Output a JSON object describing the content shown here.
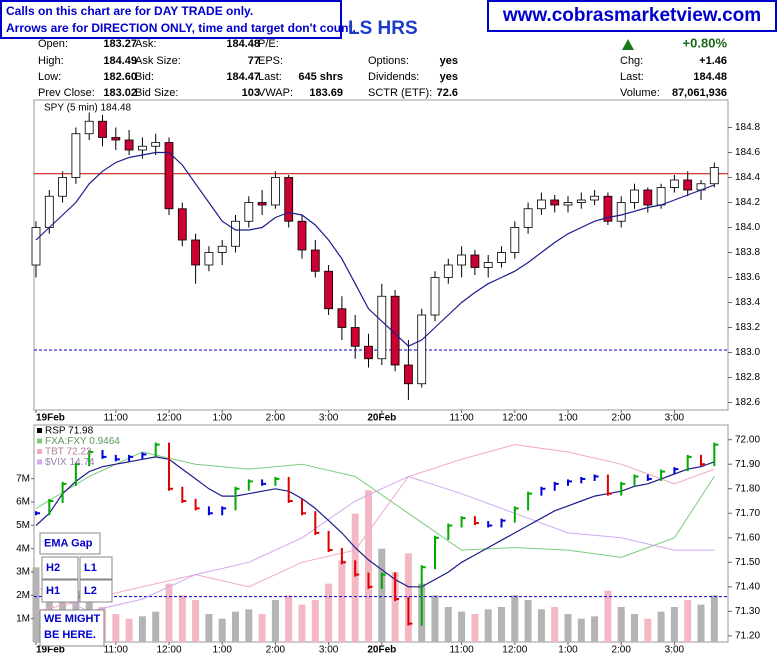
{
  "header": {
    "notice": [
      "Calls on this chart are for DAY TRADE only.",
      "Arrows are for DIRECTION ONLY, time and target don't count."
    ],
    "title": "LS HRS",
    "website": "www.cobrasmarketview.com",
    "quote": [
      [
        [
          "Open:",
          "183.27"
        ],
        [
          "Ask:",
          "184.48"
        ],
        [
          "P/E:"
        ],
        null,
        [
          "+0.80%"
        ]
      ],
      [
        [
          "High:",
          "184.49"
        ],
        [
          "Ask Size:",
          "77"
        ],
        [
          "EPS:"
        ],
        [
          "Options:",
          "yes"
        ],
        [
          "Chg:",
          "+1.46"
        ]
      ],
      [
        [
          "Low:",
          "182.60"
        ],
        [
          "Bid:",
          "184.47"
        ],
        [
          "Last:",
          "645 shrs"
        ],
        [
          "Dividends:",
          "yes"
        ],
        [
          "Last:",
          "184.48"
        ]
      ],
      [
        [
          "Prev Close:",
          "183.02"
        ],
        [
          "Bid Size:",
          "103"
        ],
        [
          "VWAP:",
          "183.69"
        ],
        [
          "SCTR (ETF):",
          "72.6"
        ],
        [
          "Volume:",
          "87,061,936"
        ]
      ]
    ]
  },
  "chart_data": [
    {
      "type": "candlestick",
      "label": "SPY (5 min) 184.48",
      "categories": [
        "19Feb",
        null,
        null,
        null,
        null,
        null,
        "11:00",
        null,
        null,
        null,
        "12:00",
        null,
        null,
        null,
        "1:00",
        null,
        null,
        null,
        "2:00",
        null,
        null,
        null,
        "3:00",
        null,
        null,
        null,
        "20Feb",
        null,
        null,
        null,
        null,
        null,
        "11:00",
        null,
        null,
        null,
        "12:00",
        null,
        null,
        null,
        "1:00",
        null,
        null,
        null,
        "2:00",
        null,
        null,
        null,
        "3:00",
        null,
        null,
        null
      ],
      "open": [
        183.7,
        184.0,
        184.25,
        184.4,
        184.75,
        184.85,
        184.72,
        184.7,
        184.62,
        184.65,
        184.68,
        184.15,
        183.9,
        183.7,
        183.8,
        183.85,
        184.05,
        184.2,
        184.18,
        184.4,
        184.05,
        183.82,
        183.65,
        183.35,
        183.2,
        183.05,
        182.95,
        183.45,
        182.9,
        182.75,
        183.3,
        183.6,
        183.7,
        183.78,
        183.68,
        183.72,
        183.8,
        184.0,
        184.15,
        184.22,
        184.18,
        184.2,
        184.22,
        184.25,
        184.05,
        184.2,
        184.3,
        184.18,
        184.32,
        184.38,
        184.3,
        184.35
      ],
      "high": [
        184.05,
        184.3,
        184.45,
        184.8,
        184.92,
        184.9,
        184.8,
        184.78,
        184.72,
        184.75,
        184.72,
        184.2,
        183.95,
        183.85,
        183.9,
        184.1,
        184.25,
        184.3,
        184.45,
        184.42,
        184.1,
        183.9,
        183.7,
        183.45,
        183.3,
        183.15,
        183.55,
        183.5,
        183.1,
        183.35,
        183.65,
        183.75,
        183.85,
        183.82,
        183.78,
        183.85,
        184.05,
        184.2,
        184.28,
        184.26,
        184.25,
        184.28,
        184.3,
        184.28,
        184.25,
        184.35,
        184.32,
        184.35,
        184.42,
        184.45,
        184.38,
        184.52
      ],
      "low": [
        183.6,
        183.95,
        184.2,
        184.35,
        184.7,
        184.65,
        184.62,
        184.58,
        184.55,
        184.58,
        184.1,
        183.85,
        183.55,
        183.65,
        183.7,
        183.8,
        184.0,
        184.1,
        184.15,
        184.0,
        183.75,
        183.6,
        183.3,
        183.1,
        182.95,
        182.88,
        182.9,
        182.85,
        182.62,
        182.72,
        183.25,
        183.55,
        183.6,
        183.62,
        183.6,
        183.68,
        183.75,
        183.95,
        184.1,
        184.12,
        184.12,
        184.15,
        184.18,
        184.02,
        184.0,
        184.15,
        184.12,
        184.15,
        184.28,
        184.25,
        184.22,
        184.32
      ],
      "close": [
        184.0,
        184.25,
        184.4,
        184.75,
        184.85,
        184.72,
        184.7,
        184.62,
        184.65,
        184.68,
        184.15,
        183.9,
        183.7,
        183.8,
        183.85,
        184.05,
        184.2,
        184.18,
        184.4,
        184.05,
        183.82,
        183.65,
        183.35,
        183.2,
        183.05,
        182.95,
        183.45,
        182.9,
        182.75,
        183.3,
        183.6,
        183.7,
        183.78,
        183.68,
        183.72,
        183.8,
        184.0,
        184.15,
        184.22,
        184.18,
        184.2,
        184.22,
        184.25,
        184.05,
        184.2,
        184.3,
        184.18,
        184.32,
        184.38,
        184.3,
        184.35,
        184.48
      ],
      "up_color": "#ffffff",
      "down_color": "#cc0033",
      "series": [
        {
          "color": "#1c1c8c",
          "values": [
            183.9,
            184.0,
            184.1,
            184.2,
            184.35,
            184.45,
            184.52,
            184.56,
            184.58,
            184.6,
            184.6,
            184.5,
            184.35,
            184.2,
            184.05,
            183.98,
            183.98,
            184.0,
            184.08,
            184.12,
            184.1,
            184.02,
            183.9,
            183.75,
            183.55,
            183.35,
            183.25,
            183.15,
            183.05,
            183.1,
            183.2,
            183.3,
            183.4,
            183.48,
            183.55,
            183.6,
            183.65,
            183.72,
            183.8,
            183.88,
            183.95,
            184.0,
            184.05,
            184.08,
            184.1,
            184.13,
            184.16,
            184.18,
            184.22,
            184.26,
            184.3,
            184.34
          ]
        }
      ],
      "hlines": [
        {
          "value": 184.43,
          "color": "#cc0000"
        },
        {
          "value": 183.02,
          "color": "#0000cc",
          "dashed": true
        }
      ],
      "ylim": [
        182.54,
        185.02
      ],
      "yticks": [
        182.6,
        182.8,
        {
          "value": 183,
          "label": "183.0"
        },
        183.2,
        183.4,
        183.6,
        183.8,
        {
          "value": 184,
          "label": "184.0"
        },
        184.2,
        184.4,
        184.6,
        184.8
      ]
    },
    {
      "type": "indicator",
      "categories": [
        "19Feb",
        null,
        null,
        null,
        null,
        null,
        "11:00",
        null,
        null,
        null,
        "12:00",
        null,
        null,
        null,
        "1:00",
        null,
        null,
        null,
        "2:00",
        null,
        null,
        null,
        "3:00",
        null,
        null,
        null,
        "20Feb",
        null,
        null,
        null,
        null,
        null,
        "11:00",
        null,
        null,
        null,
        "12:00",
        null,
        null,
        null,
        "1:00",
        null,
        null,
        null,
        "2:00",
        null,
        null,
        null,
        "3:00",
        null,
        null,
        null
      ],
      "series": [
        {
          "name": "RSP 71.98",
          "color": "#000000",
          "up_color": "#00aa00",
          "down_color": "#dd0000",
          "flat_color": "#0000dd",
          "values": [
            71.7,
            71.75,
            71.82,
            71.9,
            71.95,
            71.93,
            71.92,
            71.93,
            71.94,
            71.98,
            71.8,
            71.75,
            71.72,
            71.7,
            71.72,
            71.8,
            71.83,
            71.82,
            71.84,
            71.75,
            71.7,
            71.62,
            71.55,
            71.5,
            71.45,
            71.4,
            71.45,
            71.35,
            71.25,
            71.48,
            71.6,
            71.65,
            71.68,
            71.66,
            71.65,
            71.67,
            71.72,
            71.78,
            71.8,
            71.82,
            71.83,
            71.84,
            71.85,
            71.78,
            71.82,
            71.85,
            71.84,
            71.87,
            71.88,
            71.93,
            71.9,
            71.98
          ]
        },
        {
          "name": "FXA:FXY 0.9464",
          "color": "#7ccc7c",
          "x": [
            0,
            4,
            8,
            12,
            16,
            20,
            24,
            28,
            32,
            36,
            40,
            44,
            48,
            51
          ],
          "values": [
            71.72,
            71.85,
            71.95,
            71.9,
            71.88,
            71.9,
            71.85,
            71.7,
            71.55,
            71.56,
            71.55,
            71.52,
            71.6,
            71.85
          ]
        },
        {
          "name": "TBT 72.22",
          "color": "#f0a8c8",
          "x": [
            0,
            4,
            8,
            12,
            16,
            20,
            24,
            28,
            32,
            36,
            40,
            44,
            48,
            51
          ],
          "values": [
            71.3,
            71.35,
            71.4,
            71.45,
            71.4,
            71.5,
            71.55,
            71.85,
            71.92,
            71.98,
            71.95,
            71.9,
            71.82,
            71.88
          ]
        },
        {
          "name": "$VIX 14.74",
          "color": "#d0a8f0",
          "x": [
            0,
            4,
            8,
            12,
            16,
            20,
            24,
            28,
            32,
            36,
            40,
            44,
            48,
            51
          ],
          "values": [
            71.4,
            71.3,
            71.35,
            71.45,
            71.5,
            71.6,
            71.75,
            71.85,
            71.78,
            71.7,
            71.62,
            71.6,
            71.55,
            71.55
          ]
        }
      ],
      "ma": {
        "color": "#1c1c8c",
        "values": [
          71.65,
          71.7,
          71.78,
          71.83,
          71.87,
          71.89,
          71.9,
          71.91,
          71.92,
          71.93,
          71.92,
          71.88,
          71.84,
          71.8,
          71.77,
          71.77,
          71.78,
          71.79,
          71.8,
          71.79,
          71.76,
          71.72,
          71.67,
          71.62,
          71.56,
          71.51,
          71.47,
          71.43,
          71.4,
          71.4,
          71.43,
          71.46,
          71.5,
          71.53,
          71.56,
          71.59,
          71.62,
          71.65,
          71.68,
          71.71,
          71.73,
          71.75,
          71.77,
          71.78,
          71.79,
          71.81,
          71.82,
          71.84,
          71.86,
          71.88,
          71.89,
          71.91
        ]
      },
      "hlines": [
        {
          "value": 71.36,
          "color": "#0000cc",
          "dashed": true
        }
      ],
      "ylim": [
        71.175,
        72.06
      ],
      "yticks": [
        {
          "value": 71.2,
          "label": "71.20"
        },
        {
          "value": 71.3,
          "label": "71.30"
        },
        {
          "value": 71.4,
          "label": "71.40"
        },
        {
          "value": 71.5,
          "label": "71.50"
        },
        {
          "value": 71.6,
          "label": "71.60"
        },
        {
          "value": 71.7,
          "label": "71.70"
        },
        {
          "value": 71.8,
          "label": "71.80"
        },
        {
          "value": 71.9,
          "label": "71.90"
        },
        {
          "value": 72,
          "label": "72.00"
        }
      ],
      "volume": {
        "up_color": "#b4b4b4",
        "down_color": "#f4b8c4",
        "values": [
          3.2,
          2.5,
          2.0,
          2.2,
          1.8,
          1.5,
          1.2,
          1.0,
          1.1,
          1.3,
          2.5,
          2.0,
          1.8,
          1.2,
          1.0,
          1.3,
          1.4,
          1.2,
          1.8,
          2.0,
          1.6,
          1.8,
          2.5,
          3.5,
          5.5,
          6.5,
          4.0,
          3.0,
          3.8,
          2.5,
          2.0,
          1.5,
          1.3,
          1.2,
          1.4,
          1.5,
          2.0,
          1.8,
          1.4,
          1.5,
          1.2,
          1.0,
          1.1,
          2.2,
          1.5,
          1.2,
          1.0,
          1.3,
          1.5,
          1.8,
          1.6,
          2.0
        ],
        "ylim": [
          0,
          9.3
        ],
        "yticks": [
          {
            "value": 1,
            "label": "1M"
          },
          {
            "value": 2,
            "label": "2M"
          },
          {
            "value": 3,
            "label": "3M"
          },
          {
            "value": 4,
            "label": "4M"
          },
          {
            "value": 5,
            "label": "5M"
          },
          {
            "value": 6,
            "label": "6M"
          },
          {
            "value": 7,
            "label": "7M"
          }
        ]
      },
      "annotations": [
        "EMA Gap",
        "H2",
        "L1",
        "H1",
        "L2"
      ],
      "note": [
        "WE MIGHT",
        "BE HERE."
      ]
    }
  ]
}
